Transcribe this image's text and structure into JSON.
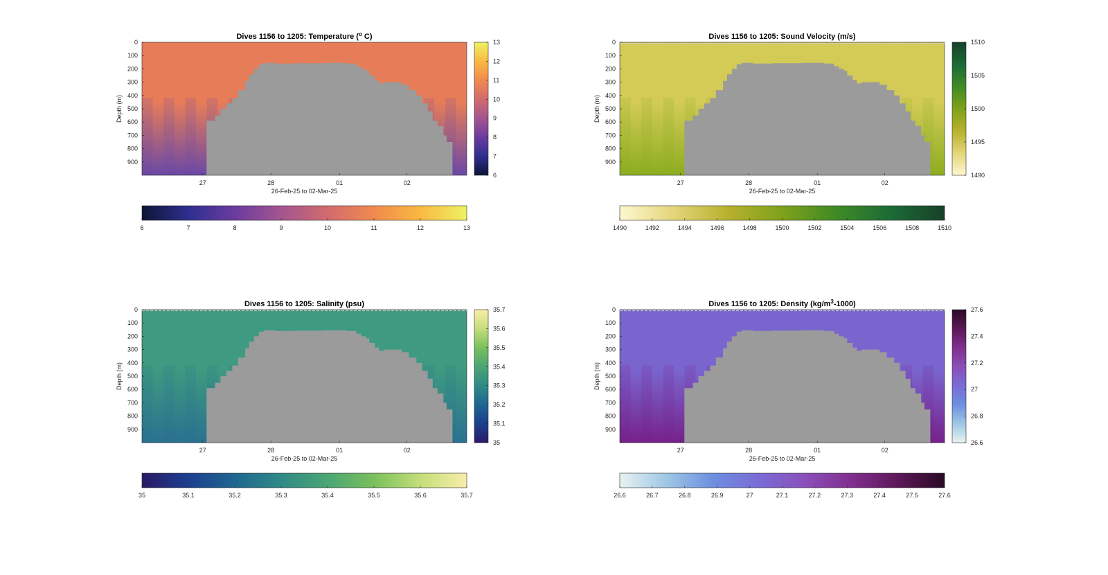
{
  "figure": {
    "xlabel": "26-Feb-25 to 02-Mar-25"
  },
  "chart_data": [
    {
      "type": "heatmap",
      "title": "Dives 1156 to 1205: Temperature (",
      "title_sup": "o",
      "title_tail": " C)",
      "ylabel": "Depth (m)",
      "xlabel": "26-Feb-25 to 02-Mar-25",
      "x_ticks": [
        "27",
        "28",
        "01",
        "02"
      ],
      "y_ticks": [
        "0",
        "100",
        "200",
        "300",
        "400",
        "500",
        "600",
        "700",
        "800",
        "900"
      ],
      "ylim": [
        0,
        1000
      ],
      "colorbar_ticks": [
        "6",
        "7",
        "8",
        "9",
        "10",
        "11",
        "12",
        "13"
      ],
      "colorbar_range": [
        6,
        13
      ],
      "colors": [
        "#0d1634",
        "#2e2f8f",
        "#6a3c9e",
        "#a4558f",
        "#d16b6e",
        "#f18a4e",
        "#f9b942",
        "#eef263"
      ],
      "surface_color": "#e77d58",
      "deep_color": "#6a48a6",
      "mask_color": "#9b9b9b"
    },
    {
      "type": "heatmap",
      "title": "Dives 1156 to 1205: Sound Velocity (m/s)",
      "ylabel": "Depth (m)",
      "xlabel": "26-Feb-25 to 02-Mar-25",
      "x_ticks": [
        "27",
        "28",
        "01",
        "02"
      ],
      "y_ticks": [
        "0",
        "100",
        "200",
        "300",
        "400",
        "500",
        "600",
        "700",
        "800",
        "900"
      ],
      "ylim": [
        0,
        1000
      ],
      "colorbar_ticks": [
        "1490",
        "1492",
        "1494",
        "1496",
        "1498",
        "1500",
        "1502",
        "1504",
        "1506",
        "1508",
        "1510"
      ],
      "side_colorbar_ticks": [
        "1490",
        "1495",
        "1500",
        "1505",
        "1510"
      ],
      "colorbar_range": [
        1490,
        1510
      ],
      "colors": [
        "#fdf7d0",
        "#e4d57a",
        "#b7b12e",
        "#7fa11a",
        "#3f8a26",
        "#1c6b36",
        "#17402a"
      ],
      "surface_color": "#d3cb56",
      "deep_color": "#8cad20",
      "mask_color": "#9b9b9b"
    },
    {
      "type": "heatmap",
      "title": "Dives 1156 to 1205: Salinity (psu)",
      "ylabel": "Depth (m)",
      "xlabel": "26-Feb-25 to 02-Mar-25",
      "x_ticks": [
        "27",
        "28",
        "01",
        "02"
      ],
      "y_ticks": [
        "0",
        "100",
        "200",
        "300",
        "400",
        "500",
        "600",
        "700",
        "800",
        "900"
      ],
      "ylim": [
        0,
        1000
      ],
      "colorbar_ticks": [
        "35",
        "35.1",
        "35.2",
        "35.3",
        "35.4",
        "35.5",
        "35.6",
        "35.7"
      ],
      "colorbar_range": [
        35,
        35.7
      ],
      "colors": [
        "#2a1a66",
        "#1c3f8e",
        "#1e6690",
        "#2f8a86",
        "#4ba574",
        "#79c05c",
        "#c4de7a",
        "#f8edab"
      ],
      "surface_color": "#3e9a80",
      "deep_color": "#2a7190",
      "mask_color": "#9b9b9b"
    },
    {
      "type": "heatmap",
      "title": "Dives 1156 to 1205: Density (kg/m",
      "title_sup": "3",
      "title_tail": "-1000)",
      "ylabel": "Depth (m)",
      "xlabel": "26-Feb-25 to 02-Mar-25",
      "x_ticks": [
        "27",
        "28",
        "01",
        "02"
      ],
      "y_ticks": [
        "0",
        "100",
        "200",
        "300",
        "400",
        "500",
        "600",
        "700",
        "800",
        "900"
      ],
      "ylim": [
        0,
        1000
      ],
      "colorbar_ticks": [
        "26.6",
        "26.7",
        "26.8",
        "26.9",
        "27",
        "27.1",
        "27.2",
        "27.3",
        "27.4",
        "27.5",
        "27.6"
      ],
      "side_colorbar_ticks": [
        "26.6",
        "26.8",
        "27",
        "27.2",
        "27.4",
        "27.6"
      ],
      "colorbar_range": [
        26.6,
        27.6
      ],
      "colors": [
        "#e9f2f2",
        "#9fc7e4",
        "#6d8fe0",
        "#7a6bd6",
        "#8b4fb9",
        "#812f8e",
        "#5c1758",
        "#2b0b26"
      ],
      "surface_color": "#7a65cf",
      "deep_color": "#76228a",
      "mask_color": "#9b9b9b"
    }
  ]
}
